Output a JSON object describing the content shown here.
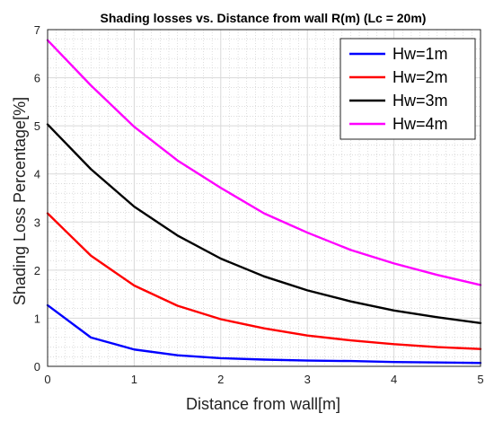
{
  "chart_data": {
    "type": "line",
    "title": "Shading losses vs. Distance from wall R(m) (Lc = 20m)",
    "xlabel": "Distance from wall[m]",
    "ylabel": "Shading Loss Percentage[%]",
    "xlim": [
      0,
      5
    ],
    "ylim": [
      0,
      7
    ],
    "xticks": [
      "0",
      "1",
      "2",
      "3",
      "4",
      "5"
    ],
    "yticks": [
      "0",
      "1",
      "2",
      "3",
      "4",
      "5",
      "6",
      "7"
    ],
    "grid": true,
    "minor_grid": true,
    "legend_position": "top-right",
    "x": [
      0,
      0.5,
      1,
      1.5,
      2,
      2.5,
      3,
      3.5,
      4,
      4.5,
      5
    ],
    "series": [
      {
        "name": "Hw=1m",
        "color": "#0000ff",
        "values": [
          1.27,
          0.6,
          0.35,
          0.23,
          0.17,
          0.14,
          0.12,
          0.11,
          0.09,
          0.08,
          0.07
        ]
      },
      {
        "name": "Hw=2m",
        "color": "#ff0000",
        "values": [
          3.18,
          2.3,
          1.68,
          1.26,
          0.98,
          0.79,
          0.64,
          0.54,
          0.46,
          0.4,
          0.36
        ]
      },
      {
        "name": "Hw=3m",
        "color": "#000000",
        "values": [
          5.03,
          4.1,
          3.32,
          2.72,
          2.24,
          1.87,
          1.58,
          1.35,
          1.16,
          1.02,
          0.9
        ]
      },
      {
        "name": "Hw=4m",
        "color": "#ff00ff",
        "values": [
          6.78,
          5.84,
          4.98,
          4.28,
          3.71,
          3.18,
          2.78,
          2.42,
          2.14,
          1.9,
          1.69
        ]
      }
    ]
  }
}
